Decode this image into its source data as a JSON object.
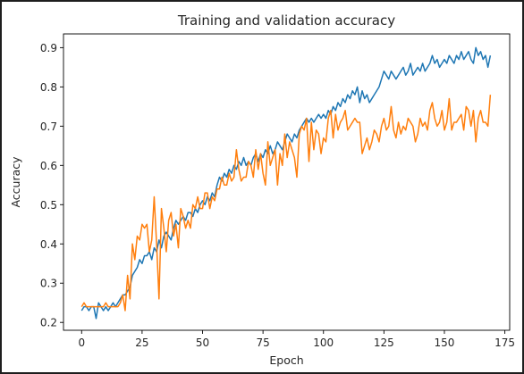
{
  "colors": {
    "page_background": "#1e1e1e",
    "figure_background": "#ffffff",
    "axes_edge": "#000000",
    "text": "#262626"
  },
  "chart_data": {
    "type": "line",
    "title": "Training and validation accuracy",
    "xlabel": "Epoch",
    "ylabel": "Accuracy",
    "xlim": [
      -7.5,
      177
    ],
    "ylim": [
      0.18,
      0.935
    ],
    "xticks": [
      0,
      25,
      50,
      75,
      100,
      125,
      150,
      175
    ],
    "yticks": [
      0.2,
      0.3,
      0.4,
      0.5,
      0.6,
      0.7,
      0.8,
      0.9
    ],
    "grid": false,
    "legend": "none",
    "x_start": 0,
    "x_step": 1,
    "series": [
      {
        "color": "#1f77b4",
        "values": [
          0.23,
          0.24,
          0.24,
          0.23,
          0.24,
          0.24,
          0.21,
          0.25,
          0.24,
          0.23,
          0.24,
          0.23,
          0.24,
          0.25,
          0.24,
          0.25,
          0.26,
          0.27,
          0.27,
          0.28,
          0.29,
          0.32,
          0.33,
          0.34,
          0.36,
          0.35,
          0.37,
          0.37,
          0.38,
          0.36,
          0.39,
          0.38,
          0.41,
          0.39,
          0.42,
          0.43,
          0.42,
          0.41,
          0.44,
          0.46,
          0.45,
          0.46,
          0.47,
          0.46,
          0.48,
          0.48,
          0.47,
          0.49,
          0.48,
          0.5,
          0.51,
          0.5,
          0.52,
          0.51,
          0.53,
          0.52,
          0.55,
          0.57,
          0.56,
          0.58,
          0.57,
          0.59,
          0.58,
          0.6,
          0.59,
          0.61,
          0.6,
          0.62,
          0.6,
          0.61,
          0.6,
          0.62,
          0.63,
          0.61,
          0.63,
          0.62,
          0.64,
          0.63,
          0.65,
          0.63,
          0.64,
          0.66,
          0.65,
          0.64,
          0.66,
          0.68,
          0.67,
          0.66,
          0.68,
          0.67,
          0.69,
          0.7,
          0.71,
          0.72,
          0.71,
          0.72,
          0.71,
          0.72,
          0.73,
          0.72,
          0.73,
          0.72,
          0.74,
          0.73,
          0.75,
          0.74,
          0.76,
          0.75,
          0.77,
          0.76,
          0.78,
          0.77,
          0.79,
          0.78,
          0.8,
          0.76,
          0.79,
          0.77,
          0.78,
          0.76,
          0.77,
          0.78,
          0.79,
          0.8,
          0.82,
          0.84,
          0.83,
          0.82,
          0.84,
          0.83,
          0.82,
          0.83,
          0.84,
          0.85,
          0.83,
          0.84,
          0.86,
          0.83,
          0.84,
          0.85,
          0.84,
          0.86,
          0.84,
          0.85,
          0.86,
          0.88,
          0.86,
          0.87,
          0.85,
          0.86,
          0.87,
          0.86,
          0.88,
          0.87,
          0.86,
          0.88,
          0.87,
          0.89,
          0.87,
          0.88,
          0.89,
          0.87,
          0.86,
          0.9,
          0.88,
          0.89,
          0.87,
          0.88,
          0.85,
          0.88
        ]
      },
      {
        "color": "#ff7f0e",
        "values": [
          0.24,
          0.25,
          0.24,
          0.24,
          0.24,
          0.24,
          0.24,
          0.24,
          0.24,
          0.24,
          0.25,
          0.24,
          0.24,
          0.24,
          0.24,
          0.24,
          0.25,
          0.27,
          0.23,
          0.32,
          0.26,
          0.4,
          0.36,
          0.42,
          0.41,
          0.45,
          0.44,
          0.45,
          0.38,
          0.41,
          0.52,
          0.4,
          0.26,
          0.49,
          0.44,
          0.38,
          0.46,
          0.48,
          0.42,
          0.45,
          0.39,
          0.49,
          0.47,
          0.44,
          0.46,
          0.44,
          0.5,
          0.49,
          0.52,
          0.49,
          0.49,
          0.53,
          0.53,
          0.49,
          0.52,
          0.51,
          0.54,
          0.54,
          0.57,
          0.55,
          0.55,
          0.58,
          0.56,
          0.57,
          0.64,
          0.59,
          0.56,
          0.57,
          0.57,
          0.61,
          0.6,
          0.57,
          0.64,
          0.59,
          0.63,
          0.58,
          0.55,
          0.66,
          0.6,
          0.62,
          0.64,
          0.55,
          0.63,
          0.6,
          0.68,
          0.62,
          0.66,
          0.64,
          0.62,
          0.57,
          0.68,
          0.7,
          0.69,
          0.72,
          0.61,
          0.71,
          0.64,
          0.69,
          0.68,
          0.63,
          0.67,
          0.66,
          0.72,
          0.74,
          0.67,
          0.73,
          0.69,
          0.71,
          0.72,
          0.74,
          0.69,
          0.7,
          0.71,
          0.72,
          0.71,
          0.71,
          0.63,
          0.65,
          0.67,
          0.64,
          0.66,
          0.69,
          0.68,
          0.66,
          0.7,
          0.72,
          0.69,
          0.7,
          0.75,
          0.69,
          0.67,
          0.71,
          0.68,
          0.7,
          0.69,
          0.72,
          0.71,
          0.7,
          0.66,
          0.68,
          0.72,
          0.7,
          0.71,
          0.69,
          0.74,
          0.76,
          0.72,
          0.7,
          0.71,
          0.74,
          0.69,
          0.71,
          0.77,
          0.69,
          0.71,
          0.71,
          0.72,
          0.73,
          0.69,
          0.75,
          0.74,
          0.7,
          0.74,
          0.66,
          0.72,
          0.74,
          0.71,
          0.71,
          0.7,
          0.78
        ]
      }
    ]
  }
}
